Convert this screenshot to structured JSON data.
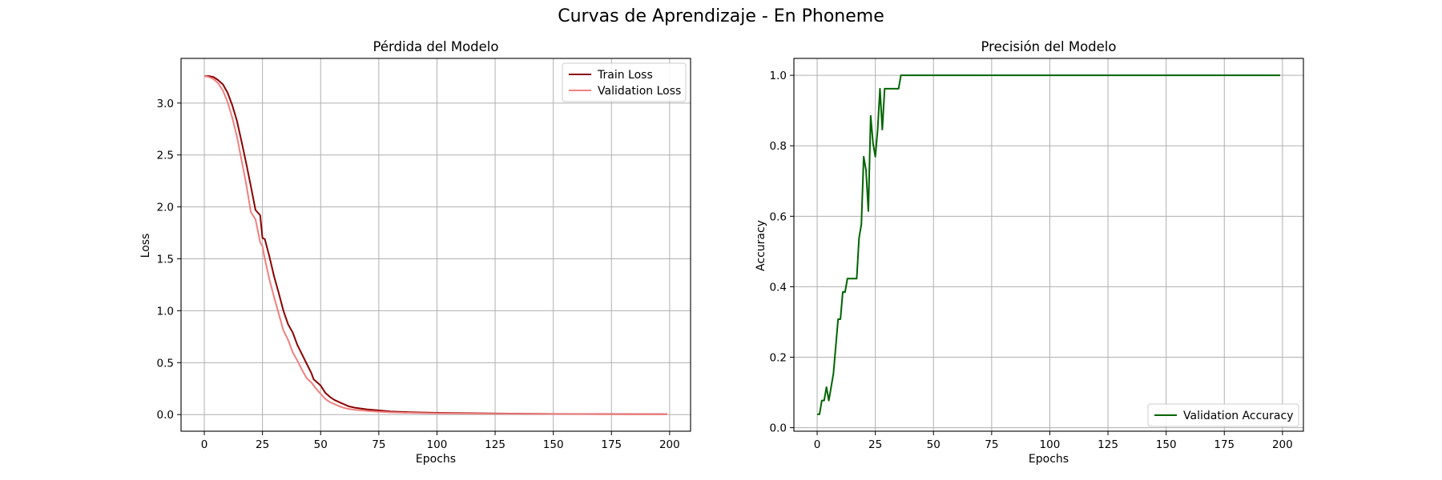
{
  "figure": {
    "suptitle": "Curvas de Aprendizaje - En Phoneme"
  },
  "chart_data": [
    {
      "type": "line",
      "title": "Pérdida del Modelo",
      "xlabel": "Epochs",
      "ylabel": "Loss",
      "xlim": [
        -10,
        209
      ],
      "ylim": [
        -0.16,
        3.43
      ],
      "xticks": [
        0,
        25,
        50,
        75,
        100,
        125,
        150,
        175,
        200
      ],
      "yticks": [
        0.0,
        0.5,
        1.0,
        1.5,
        2.0,
        2.5,
        3.0
      ],
      "ytick_labels": [
        "0.0",
        "0.5",
        "1.0",
        "1.5",
        "2.0",
        "2.5",
        "3.0"
      ],
      "grid": true,
      "legend": "upper-right",
      "series": [
        {
          "name": "Train Loss",
          "color": "#8b0000",
          "points": [
            [
              0,
              3.26
            ],
            [
              2,
              3.26
            ],
            [
              4,
              3.25
            ],
            [
              6,
              3.22
            ],
            [
              8,
              3.18
            ],
            [
              10,
              3.1
            ],
            [
              12,
              2.98
            ],
            [
              14,
              2.83
            ],
            [
              16,
              2.63
            ],
            [
              18,
              2.42
            ],
            [
              20,
              2.2
            ],
            [
              22,
              1.97
            ],
            [
              24,
              1.92
            ],
            [
              25,
              1.7
            ],
            [
              26,
              1.69
            ],
            [
              28,
              1.52
            ],
            [
              30,
              1.33
            ],
            [
              32,
              1.17
            ],
            [
              34,
              1.0
            ],
            [
              36,
              0.87
            ],
            [
              38,
              0.79
            ],
            [
              40,
              0.67
            ],
            [
              42,
              0.58
            ],
            [
              44,
              0.49
            ],
            [
              46,
              0.4
            ],
            [
              47,
              0.34
            ],
            [
              50,
              0.28
            ],
            [
              52,
              0.21
            ],
            [
              54,
              0.17
            ],
            [
              56,
              0.14
            ],
            [
              58,
              0.12
            ],
            [
              60,
              0.1
            ],
            [
              62,
              0.08
            ],
            [
              65,
              0.065
            ],
            [
              70,
              0.05
            ],
            [
              75,
              0.04
            ],
            [
              80,
              0.03
            ],
            [
              90,
              0.022
            ],
            [
              100,
              0.017
            ],
            [
              125,
              0.01
            ],
            [
              150,
              0.007
            ],
            [
              175,
              0.005
            ],
            [
              199,
              0.004
            ]
          ]
        },
        {
          "name": "Validation Loss",
          "color": "#f08080",
          "points": [
            [
              0,
              3.26
            ],
            [
              2,
              3.25
            ],
            [
              4,
              3.23
            ],
            [
              6,
              3.19
            ],
            [
              8,
              3.12
            ],
            [
              10,
              3.01
            ],
            [
              12,
              2.86
            ],
            [
              14,
              2.68
            ],
            [
              16,
              2.45
            ],
            [
              18,
              2.22
            ],
            [
              20,
              1.95
            ],
            [
              22,
              1.88
            ],
            [
              24,
              1.66
            ],
            [
              25,
              1.62
            ],
            [
              26,
              1.5
            ],
            [
              28,
              1.3
            ],
            [
              30,
              1.13
            ],
            [
              32,
              0.97
            ],
            [
              34,
              0.81
            ],
            [
              36,
              0.72
            ],
            [
              38,
              0.6
            ],
            [
              40,
              0.52
            ],
            [
              42,
              0.43
            ],
            [
              44,
              0.35
            ],
            [
              46,
              0.31
            ],
            [
              48,
              0.25
            ],
            [
              50,
              0.2
            ],
            [
              52,
              0.15
            ],
            [
              54,
              0.12
            ],
            [
              56,
              0.1
            ],
            [
              58,
              0.08
            ],
            [
              60,
              0.065
            ],
            [
              62,
              0.055
            ],
            [
              65,
              0.045
            ],
            [
              70,
              0.035
            ],
            [
              75,
              0.028
            ],
            [
              80,
              0.022
            ],
            [
              90,
              0.016
            ],
            [
              100,
              0.012
            ],
            [
              125,
              0.008
            ],
            [
              150,
              0.006
            ],
            [
              175,
              0.004
            ],
            [
              199,
              0.003
            ]
          ]
        }
      ]
    },
    {
      "type": "line",
      "title": "Precisión del Modelo",
      "xlabel": "Epochs",
      "ylabel": "Accuracy",
      "xlim": [
        -10,
        209
      ],
      "ylim": [
        -0.01,
        1.048
      ],
      "xticks": [
        0,
        25,
        50,
        75,
        100,
        125,
        150,
        175,
        200
      ],
      "yticks": [
        0.0,
        0.2,
        0.4,
        0.6,
        0.8,
        1.0
      ],
      "ytick_labels": [
        "0.0",
        "0.2",
        "0.4",
        "0.6",
        "0.8",
        "1.0"
      ],
      "grid": true,
      "legend": "lower-right",
      "series": [
        {
          "name": "Validation Accuracy",
          "color": "#006400",
          "points": [
            [
              0,
              0.038
            ],
            [
              1,
              0.038
            ],
            [
              2,
              0.077
            ],
            [
              3,
              0.077
            ],
            [
              4,
              0.115
            ],
            [
              5,
              0.077
            ],
            [
              6,
              0.115
            ],
            [
              7,
              0.154
            ],
            [
              8,
              0.231
            ],
            [
              9,
              0.308
            ],
            [
              10,
              0.308
            ],
            [
              11,
              0.385
            ],
            [
              12,
              0.385
            ],
            [
              13,
              0.423
            ],
            [
              14,
              0.423
            ],
            [
              15,
              0.423
            ],
            [
              16,
              0.423
            ],
            [
              17,
              0.423
            ],
            [
              18,
              0.538
            ],
            [
              19,
              0.577
            ],
            [
              20,
              0.769
            ],
            [
              21,
              0.731
            ],
            [
              22,
              0.615
            ],
            [
              23,
              0.885
            ],
            [
              24,
              0.808
            ],
            [
              25,
              0.769
            ],
            [
              26,
              0.846
            ],
            [
              27,
              0.962
            ],
            [
              28,
              0.846
            ],
            [
              29,
              0.962
            ],
            [
              30,
              0.962
            ],
            [
              31,
              0.962
            ],
            [
              32,
              0.962
            ],
            [
              33,
              0.962
            ],
            [
              34,
              0.962
            ],
            [
              35,
              0.962
            ],
            [
              36,
              1.0
            ],
            [
              50,
              1.0
            ],
            [
              100,
              1.0
            ],
            [
              150,
              1.0
            ],
            [
              199,
              1.0
            ]
          ]
        }
      ]
    }
  ]
}
